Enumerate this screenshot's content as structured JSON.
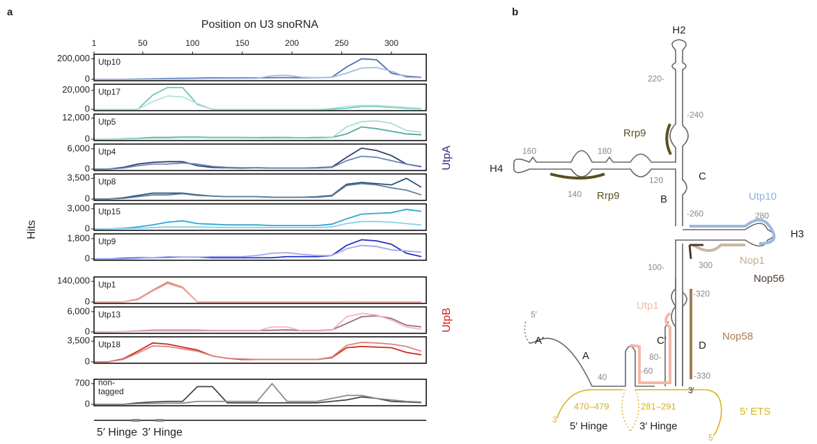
{
  "panel_labels": [
    "a",
    "b"
  ],
  "chart_data": {
    "type": "line",
    "xlabel": "Position on U3 snoRNA",
    "ylabel": "Hits",
    "xlim": [
      1,
      335
    ],
    "xticks": [
      1,
      50,
      100,
      150,
      200,
      250,
      300
    ],
    "x": [
      1,
      15,
      30,
      45,
      60,
      75,
      90,
      105,
      120,
      135,
      150,
      165,
      180,
      195,
      210,
      225,
      240,
      255,
      270,
      285,
      300,
      315,
      330
    ],
    "groups": [
      {
        "label": "UtpA",
        "color": "#2b2f86"
      },
      {
        "label": "UtpB",
        "color": "#d42020"
      }
    ],
    "hinge_labels": [
      "5′ Hinge",
      "3′ Hinge"
    ],
    "panels": [
      {
        "title": "Utp10",
        "ylim": [
          0,
          230000
        ],
        "yticks": [
          0,
          {
            "value": 200000,
            "label": "200,000"
          }
        ],
        "series": [
          {
            "color": "#4a6fb0",
            "values": [
              0,
              0,
              1000,
              3000,
              5000,
              8000,
              10000,
              12000,
              15000,
              14000,
              15000,
              14000,
              16000,
              17000,
              15000,
              15000,
              20000,
              120000,
              200000,
              190000,
              60000,
              30000,
              20000
            ]
          },
          {
            "color": "#a7b9e3",
            "values": [
              0,
              0,
              0,
              0,
              1000,
              2000,
              3000,
              5000,
              8000,
              8000,
              9000,
              10000,
              35000,
              40000,
              20000,
              15000,
              20000,
              60000,
              110000,
              115000,
              80000,
              20000,
              15000
            ]
          }
        ]
      },
      {
        "title": "Utp17",
        "ylim": [
          0,
          25000
        ],
        "yticks": [
          0,
          {
            "value": 20000,
            "label": "20,000"
          }
        ],
        "series": [
          {
            "color": "#6bc7be",
            "values": [
              0,
              0,
              0,
              0,
              15000,
              23000,
              23000,
              5000,
              0,
              0,
              0,
              0,
              0,
              0,
              0,
              0,
              0,
              1000,
              3000,
              3000,
              2000,
              1000,
              500
            ]
          },
          {
            "color": "#b5e3dd",
            "values": [
              0,
              0,
              0,
              0,
              8000,
              14000,
              13000,
              6000,
              0,
              0,
              0,
              0,
              0,
              0,
              0,
              0,
              1000,
              3000,
              4000,
              4000,
              3000,
              2000,
              1000
            ]
          }
        ]
      },
      {
        "title": "Utp5",
        "ylim": [
          0,
          13500
        ],
        "yticks": [
          0,
          {
            "value": 12000,
            "label": "12,000"
          }
        ],
        "series": [
          {
            "color": "#4fa8a0",
            "values": [
              0,
              0,
              200,
              500,
              1000,
              1000,
              1200,
              1200,
              1000,
              1000,
              1000,
              900,
              1000,
              1000,
              800,
              1000,
              1000,
              3000,
              7000,
              6000,
              4500,
              3000,
              2500
            ]
          },
          {
            "color": "#a8ddd6",
            "values": [
              0,
              0,
              0,
              200,
              500,
              500,
              800,
              800,
              600,
              600,
              600,
              500,
              500,
              600,
              500,
              500,
              800,
              7000,
              10000,
              10500,
              9000,
              5000,
              4000
            ]
          }
        ]
      },
      {
        "title": "Utp4",
        "ylim": [
          0,
          7000
        ],
        "yticks": [
          0,
          {
            "value": 6000,
            "label": "6,000"
          }
        ],
        "series": [
          {
            "color": "#2b3f73",
            "values": [
              0,
              0,
              500,
              1500,
              2000,
              2200,
              2200,
              1000,
              500,
              400,
              300,
              400,
              300,
              300,
              300,
              400,
              600,
              3500,
              6200,
              5500,
              4000,
              1500,
              700
            ]
          },
          {
            "color": "#6d82b8",
            "values": [
              0,
              0,
              300,
              1000,
              1500,
              1500,
              1800,
              1500,
              800,
              500,
              400,
              400,
              300,
              300,
              300,
              300,
              500,
              2500,
              3800,
              3500,
              2500,
              1500,
              800
            ]
          }
        ]
      },
      {
        "title": "Utp8",
        "ylim": [
          0,
          4000
        ],
        "yticks": [
          0,
          {
            "value": 3500,
            "label": "3,500"
          }
        ],
        "series": [
          {
            "color": "#2a4e78",
            "values": [
              0,
              0,
              200,
              600,
              1000,
              1000,
              1000,
              700,
              500,
              400,
              400,
              400,
              300,
              300,
              300,
              400,
              600,
              2500,
              2800,
              2600,
              2400,
              3500,
              2000
            ]
          },
          {
            "color": "#5d7fa0",
            "values": [
              0,
              0,
              100,
              400,
              700,
              700,
              900,
              600,
              500,
              400,
              400,
              400,
              300,
              300,
              300,
              300,
              500,
              2300,
              2600,
              2400,
              1900,
              1500,
              700
            ]
          }
        ]
      },
      {
        "title": "Utp15",
        "ylim": [
          0,
          3500
        ],
        "yticks": [
          0,
          {
            "value": 3000,
            "label": "3,000"
          }
        ],
        "series": [
          {
            "color": "#27a7d6",
            "values": [
              0,
              0,
              100,
              300,
              600,
              1000,
              1200,
              800,
              700,
              600,
              600,
              600,
              500,
              500,
              500,
              500,
              700,
              1500,
              2200,
              2300,
              2400,
              2900,
              2600
            ]
          },
          {
            "color": "#8ad0e6",
            "values": [
              0,
              0,
              50,
              100,
              200,
              300,
              300,
              300,
              250,
              200,
              200,
              200,
              200,
              200,
              200,
              200,
              300,
              800,
              1100,
              1100,
              1000,
              800,
              600
            ]
          }
        ]
      },
      {
        "title": "Utp9",
        "ylim": [
          0,
          2100
        ],
        "yticks": [
          0,
          {
            "value": 1800,
            "label": "1,800"
          }
        ],
        "series": [
          {
            "color": "#2030c8",
            "values": [
              0,
              0,
              50,
              100,
              100,
              150,
              150,
              150,
              100,
              100,
              100,
              100,
              100,
              200,
              200,
              200,
              300,
              1200,
              1700,
              1600,
              1300,
              500,
              200
            ]
          },
          {
            "color": "#9ea8ea",
            "values": [
              0,
              0,
              0,
              50,
              100,
              100,
              150,
              150,
              200,
              200,
              200,
              300,
              500,
              550,
              400,
              300,
              300,
              900,
              1200,
              1100,
              800,
              700,
              600
            ]
          }
        ]
      },
      {
        "title": "Utp1",
        "ylim": [
          0,
          160000
        ],
        "yticks": [
          0,
          {
            "value": 140000,
            "label": "140,000"
          }
        ],
        "series": [
          {
            "color": "#d97b72",
            "values": [
              0,
              0,
              0,
              20000,
              80000,
              135000,
              100000,
              0,
              0,
              0,
              0,
              0,
              0,
              0,
              0,
              0,
              0,
              1000,
              1000,
              1000,
              1000,
              1000,
              1000
            ]
          },
          {
            "color": "#eda89e",
            "values": [
              0,
              0,
              0,
              15000,
              75000,
              125000,
              95000,
              0,
              0,
              0,
              0,
              0,
              0,
              0,
              0,
              0,
              0,
              500,
              500,
              500,
              500,
              500,
              500
            ]
          }
        ]
      },
      {
        "title": "Utp13",
        "ylim": [
          0,
          7000
        ],
        "yticks": [
          0,
          {
            "value": 6000,
            "label": "6,000"
          }
        ],
        "series": [
          {
            "color": "#9e6a7a",
            "values": [
              0,
              0,
              100,
              300,
              500,
              500,
              500,
              500,
              400,
              400,
              400,
              400,
              500,
              600,
              400,
              400,
              600,
              2500,
              4500,
              4800,
              4000,
              2000,
              1500
            ]
          },
          {
            "color": "#f0b4c4",
            "values": [
              0,
              0,
              100,
              200,
              300,
              300,
              300,
              300,
              300,
              300,
              300,
              300,
              1500,
              1500,
              300,
              300,
              500,
              4500,
              5500,
              5000,
              3500,
              1500,
              800
            ]
          }
        ]
      },
      {
        "title": "Utp18",
        "ylim": [
          0,
          4000
        ],
        "yticks": [
          0,
          {
            "value": 3500,
            "label": "3,500"
          }
        ],
        "series": [
          {
            "color": "#cc2a1c",
            "values": [
              0,
              0,
              500,
              1800,
              3200,
              3000,
              2500,
              2000,
              1000,
              600,
              400,
              400,
              400,
              400,
              400,
              400,
              700,
              2400,
              2600,
              2500,
              2400,
              1600,
              1200
            ]
          },
          {
            "color": "#d9857c",
            "values": [
              0,
              0,
              400,
              1500,
              2700,
              2600,
              2200,
              1800,
              1000,
              600,
              500,
              400,
              400,
              400,
              400,
              400,
              800,
              2800,
              3300,
              3200,
              3000,
              2600,
              1800
            ]
          }
        ]
      },
      {
        "title": "non-\ntagged",
        "ylim": [
          0,
          800
        ],
        "yticks": [
          0,
          700
        ],
        "series": [
          {
            "color": "#444444",
            "values": [
              0,
              0,
              0,
              50,
              80,
              100,
              100,
              600,
              600,
              50,
              50,
              50,
              50,
              50,
              50,
              50,
              100,
              150,
              250,
              200,
              100,
              80,
              60
            ]
          },
          {
            "color": "#8a8a8a",
            "values": [
              0,
              0,
              0,
              20,
              30,
              40,
              40,
              100,
              100,
              100,
              100,
              100,
              700,
              100,
              100,
              100,
              200,
              300,
              300,
              200,
              150,
              100,
              80
            ]
          }
        ]
      }
    ]
  },
  "diagram": {
    "labels": [
      "H2",
      "220-",
      "-240",
      "Rrp9",
      "160",
      "180",
      "H4",
      "140",
      "Rrp9",
      "120",
      "B",
      "C",
      "Utp10",
      "-260",
      "280",
      "H3",
      "300",
      "Nop1",
      "Nop56",
      "100-",
      "-320",
      "Utp1",
      "5′",
      "A′",
      "A",
      "C′",
      "D",
      "Nop58",
      "80-",
      "-60",
      "40",
      "-330",
      "3′",
      "470–479",
      "281–291",
      "5′ ETS",
      "3′",
      "5′ Hinge",
      "3′ Hinge",
      "5′"
    ]
  }
}
